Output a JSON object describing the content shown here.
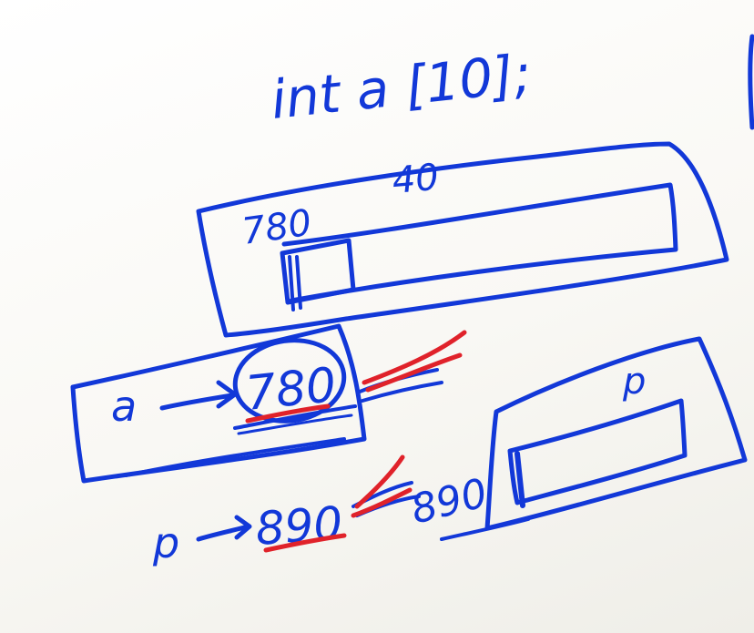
{
  "colors": {
    "ink_blue": "#1238d8",
    "ink_red": "#e0222a",
    "board_background": "#fbfaf6"
  },
  "sketch": {
    "declaration": "int a [10];",
    "array_block": {
      "size_label": "40",
      "base_address": "780"
    },
    "pointer_a": {
      "label": "a",
      "arrow": "->",
      "value": "780"
    },
    "pointer_p": {
      "label": "p",
      "arrow": "->",
      "value": "890"
    },
    "p_block": {
      "name": "p",
      "address": "890"
    }
  }
}
